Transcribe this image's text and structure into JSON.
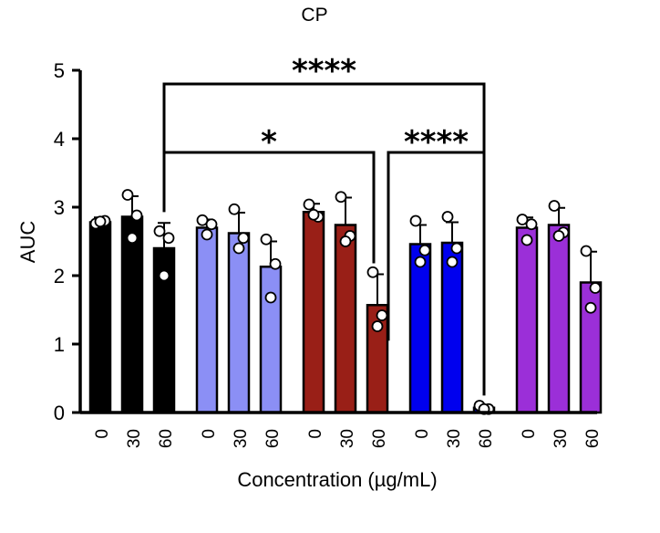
{
  "chart_data": {
    "type": "bar",
    "title": "CP",
    "xlabel": "Concentration (µg/mL)",
    "ylabel": "AUC",
    "ylim": [
      0,
      5
    ],
    "yticks": [
      0,
      1,
      2,
      3,
      4,
      5
    ],
    "categories": [
      "0",
      "30",
      "60"
    ],
    "series": [
      {
        "color": "#000000",
        "values": [
          2.78,
          2.86,
          2.4
        ],
        "sd": [
          0.07,
          0.3,
          0.37
        ],
        "points": [
          [
            2.76,
            2.8,
            2.79
          ],
          [
            3.18,
            2.88,
            2.55
          ],
          [
            2.65,
            2.55,
            2.0
          ]
        ]
      },
      {
        "color": "#8b8ff5",
        "values": [
          2.7,
          2.62,
          2.13
        ],
        "sd": [
          0.12,
          0.3,
          0.37
        ],
        "points": [
          [
            2.81,
            2.75,
            2.6
          ],
          [
            2.97,
            2.55,
            2.4
          ],
          [
            2.53,
            2.17,
            1.68
          ]
        ]
      },
      {
        "color": "#991f17",
        "values": [
          2.93,
          2.74,
          1.57
        ],
        "sd": [
          0.12,
          0.4,
          0.45
        ],
        "points": [
          [
            3.04,
            2.86,
            2.89
          ],
          [
            3.15,
            2.58,
            2.5
          ],
          [
            2.05,
            1.42,
            1.26
          ]
        ]
      },
      {
        "color": "#0000ee",
        "values": [
          2.46,
          2.48,
          0.07
        ],
        "sd": [
          0.28,
          0.3,
          0.02
        ],
        "points": [
          [
            2.8,
            2.37,
            2.2
          ],
          [
            2.86,
            2.4,
            2.2
          ],
          [
            0.1,
            0.05,
            0.05
          ]
        ]
      },
      {
        "color": "#9b2fd8",
        "values": [
          2.7,
          2.74,
          1.9
        ],
        "sd": [
          0.15,
          0.25,
          0.45
        ],
        "points": [
          [
            2.82,
            2.75,
            2.52
          ],
          [
            3.02,
            2.63,
            2.58
          ],
          [
            2.36,
            1.82,
            1.53
          ]
        ]
      }
    ],
    "significance": [
      {
        "label": "****",
        "from": [
          0,
          2
        ],
        "to": [
          3,
          2
        ]
      },
      {
        "label": "*",
        "from": [
          0,
          2
        ],
        "to": [
          2,
          2
        ]
      },
      {
        "label": "****",
        "from": [
          2,
          2
        ],
        "to": [
          3,
          2
        ]
      }
    ]
  }
}
